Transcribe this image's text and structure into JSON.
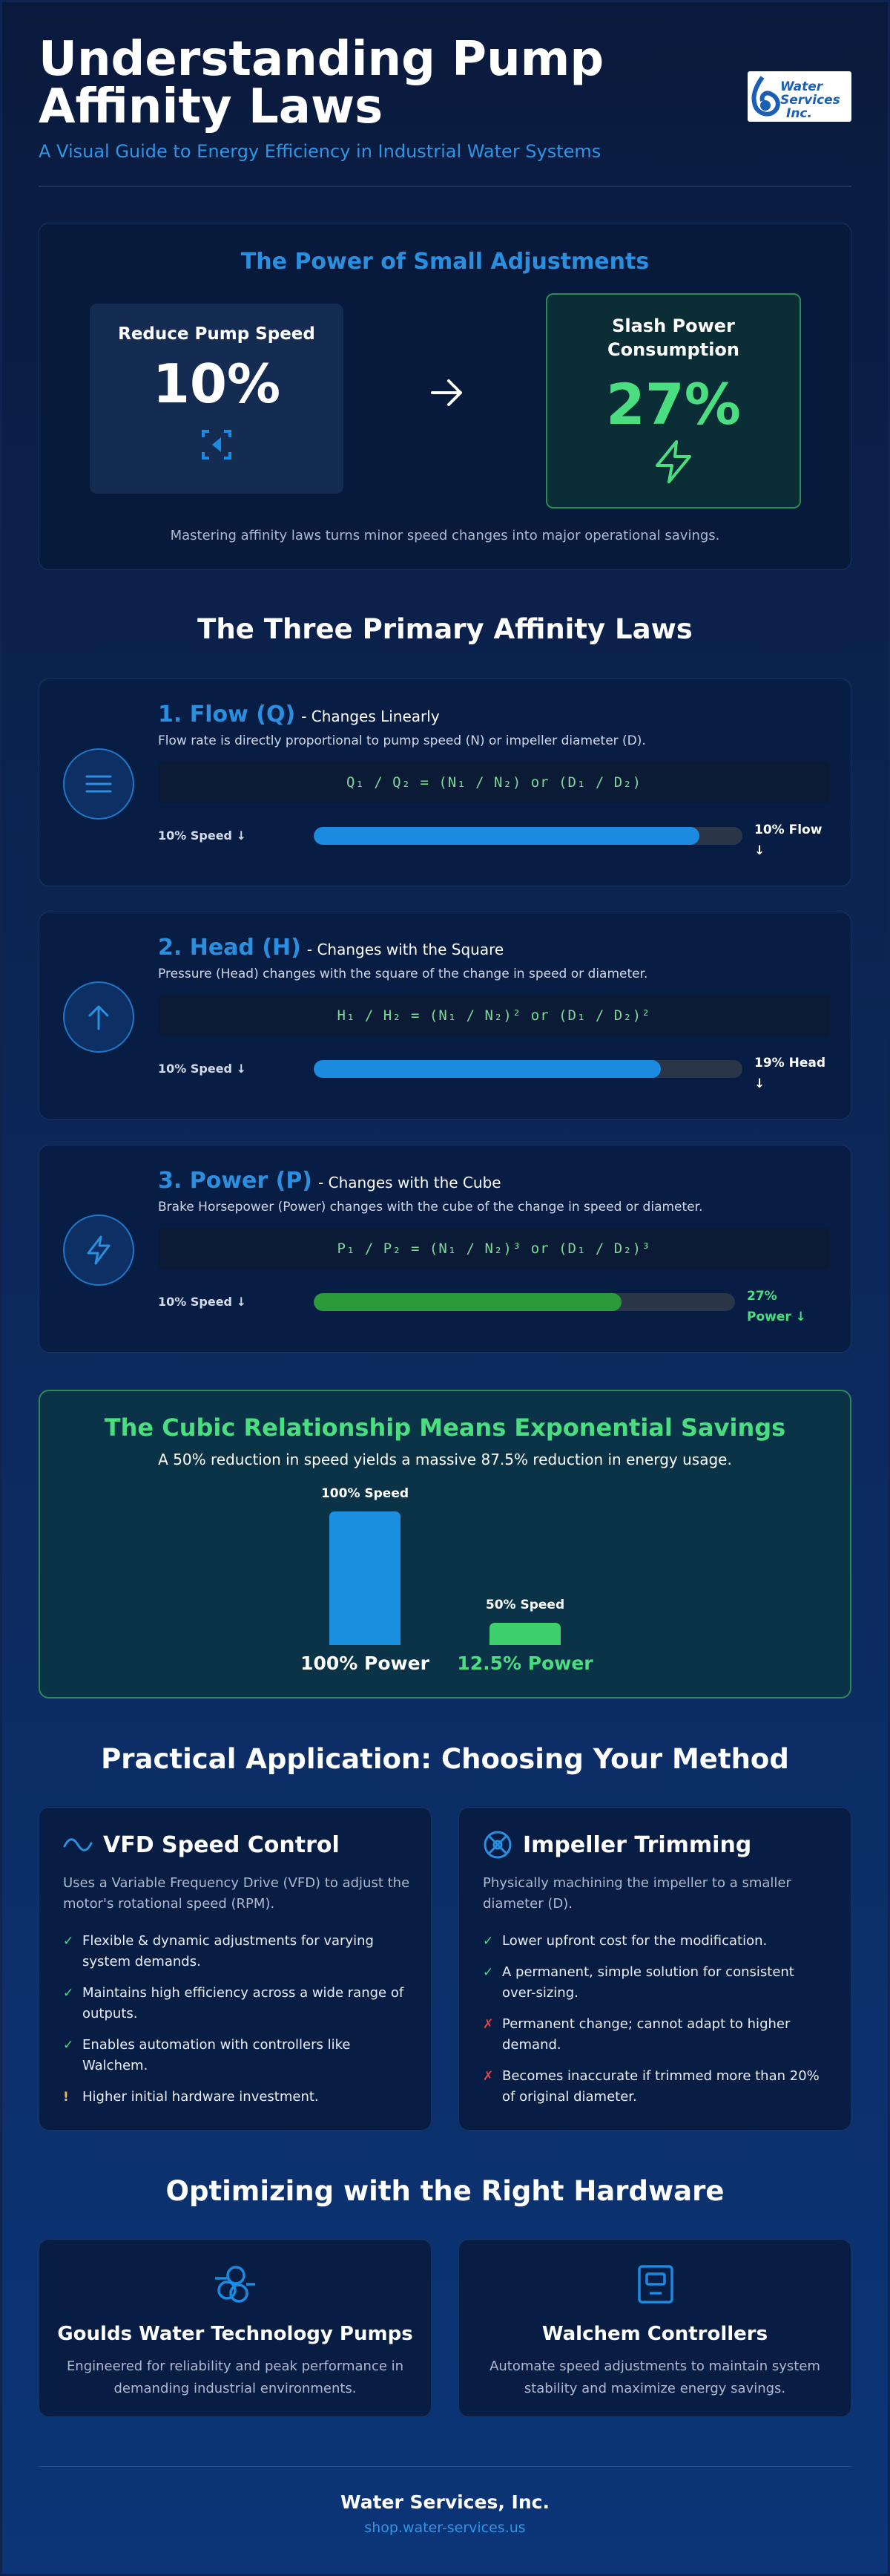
{
  "header": {
    "title": "Understanding Pump Affinity Laws",
    "subtitle": "A Visual Guide to Energy Efficiency in Industrial Water Systems",
    "logo_text": "Water Services Inc."
  },
  "hero": {
    "heading": "The Power of Small Adjustments",
    "speed_label": "Reduce Pump Speed",
    "speed_value": "10%",
    "power_label": "Slash Power Consumption",
    "power_value": "27%",
    "footnote": "Mastering affinity laws turns minor speed changes into major operational savings."
  },
  "laws_section": {
    "title": "The Three Primary Affinity Laws",
    "laws": [
      {
        "title": "1. Flow (Q)",
        "subtitle": "- Changes Linearly",
        "description": "Flow rate is directly proportional to pump speed (N) or impeller diameter (D).",
        "formula": "Q₁ / Q₂ = (N₁ / N₂) or (D₁ / D₂)",
        "bar_left": "10% Speed ↓",
        "bar_right": "10% Flow ↓",
        "fill_pct": 90,
        "icon": "flow-lines-icon",
        "color": "#1a8be0"
      },
      {
        "title": "2. Head (H)",
        "subtitle": "- Changes with the Square",
        "description": "Pressure (Head) changes with the square of the change in speed or diameter.",
        "formula": "H₁ / H₂ = (N₁ / N₂)² or (D₁ / D₂)²",
        "bar_left": "10% Speed ↓",
        "bar_right": "19% Head ↓",
        "fill_pct": 81,
        "icon": "arrow-up-icon",
        "color": "#1a8be0"
      },
      {
        "title": "3. Power (P)",
        "subtitle": "- Changes with the Cube",
        "description": "Brake Horsepower (Power) changes with the cube of the change in speed or diameter.",
        "formula": "P₁ / P₂ = (N₁ / N₂)³ or (D₁ / D₂)³",
        "bar_left": "10% Speed ↓",
        "bar_right": "27% Power ↓",
        "fill_pct": 73,
        "icon": "lightning-icon",
        "color": "#2b9a3a"
      }
    ]
  },
  "cubic": {
    "title": "The Cubic Relationship Means Exponential Savings",
    "subtitle": "A 50% reduction in speed yields a massive 87.5% reduction in energy usage.",
    "chart_data": {
      "type": "bar",
      "categories": [
        "100% Speed",
        "50% Speed"
      ],
      "values": [
        100,
        12.5
      ],
      "value_labels": [
        "100% Power",
        "12.5% Power"
      ],
      "colors": [
        "#1a8fe0",
        "#3fcf6c"
      ],
      "ylim": [
        0,
        100
      ]
    }
  },
  "methods_section": {
    "title": "Practical Application: Choosing Your Method",
    "methods": [
      {
        "title": "VFD Speed Control",
        "icon": "wave-icon",
        "description": "Uses a Variable Frequency Drive (VFD) to adjust the motor's rotational speed (RPM).",
        "points": [
          {
            "type": "pro",
            "mark": "✓",
            "text": "Flexible & dynamic adjustments for varying system demands."
          },
          {
            "type": "pro",
            "mark": "✓",
            "text": "Maintains high efficiency across a wide range of outputs."
          },
          {
            "type": "pro",
            "mark": "✓",
            "text": "Enables automation with controllers like Walchem."
          },
          {
            "type": "warn",
            "mark": "!",
            "text": "Higher initial hardware investment."
          }
        ]
      },
      {
        "title": "Impeller Trimming",
        "icon": "impeller-icon",
        "description": "Physically machining the impeller to a smaller diameter (D).",
        "points": [
          {
            "type": "pro",
            "mark": "✓",
            "text": "Lower upfront cost for the modification."
          },
          {
            "type": "pro",
            "mark": "✓",
            "text": "A permanent, simple solution for consistent over-sizing."
          },
          {
            "type": "con",
            "mark": "✗",
            "text": "Permanent change; cannot adapt to higher demand."
          },
          {
            "type": "con",
            "mark": "✗",
            "text": "Becomes inaccurate if trimmed more than 20% of original diameter."
          }
        ]
      }
    ]
  },
  "hardware_section": {
    "title": "Optimizing with the Right Hardware",
    "items": [
      {
        "title": "Goulds Water Technology Pumps",
        "description": "Engineered for reliability and peak performance in demanding industrial environments.",
        "icon": "pump-icon"
      },
      {
        "title": "Walchem Controllers",
        "description": "Automate speed adjustments to maintain system stability and maximize energy savings.",
        "icon": "controller-icon"
      }
    ]
  },
  "footer": {
    "company": "Water Services, Inc.",
    "link": "shop.water-services.us"
  }
}
